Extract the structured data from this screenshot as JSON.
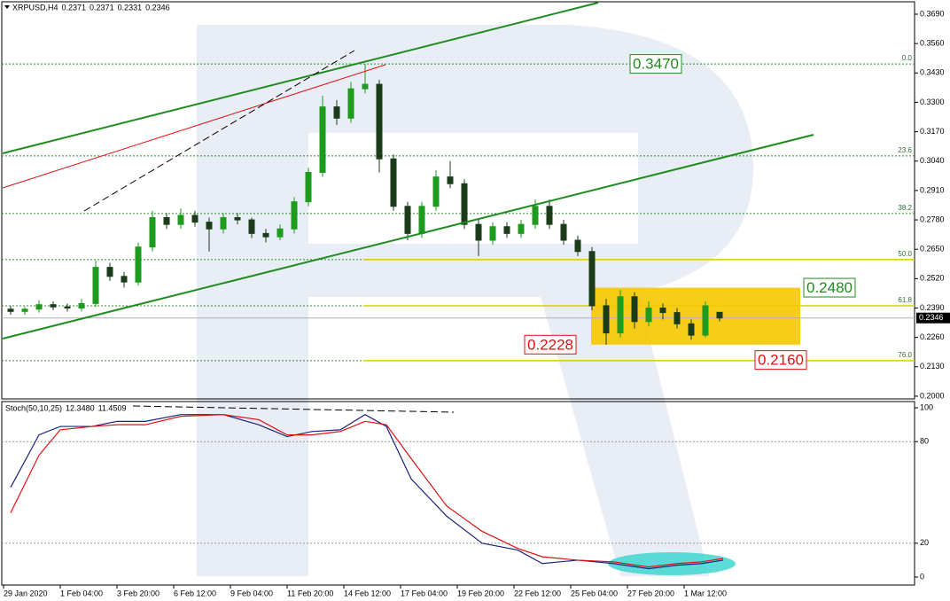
{
  "chart_data": [
    {
      "type": "candlestick",
      "title": "XRPUSD,H4",
      "last_ohlc": [
        0.2371,
        0.2371,
        0.2331,
        0.2346
      ],
      "up_color": "#1e9a1e",
      "down_color": "#1b3b1b",
      "x": [
        2,
        6,
        10,
        14,
        18,
        22,
        26,
        30,
        34,
        38,
        42,
        46,
        50,
        54,
        58,
        62,
        66,
        70,
        74,
        78,
        82,
        86,
        90,
        94,
        98,
        102,
        106,
        110,
        114,
        118,
        122,
        126,
        130,
        134,
        138,
        142,
        146,
        150,
        154,
        158,
        162,
        166,
        170,
        174,
        178,
        182,
        186,
        190,
        194,
        198,
        202
      ],
      "close": [
        0.2375,
        0.2385,
        0.2405,
        0.2395,
        0.239,
        0.241,
        0.257,
        0.253,
        0.2505,
        0.266,
        0.279,
        0.276,
        0.28,
        0.277,
        0.274,
        0.279,
        0.278,
        0.272,
        0.2705,
        0.274,
        0.286,
        0.299,
        0.328,
        0.323,
        0.336,
        0.338,
        0.305,
        0.284,
        0.272,
        0.284,
        0.297,
        0.294,
        0.276,
        0.269,
        0.275,
        0.272,
        0.276,
        0.284,
        0.276,
        0.269,
        0.264,
        0.24,
        0.228,
        0.244,
        0.233,
        0.239,
        0.237,
        0.232,
        0.227,
        0.24,
        0.2346
      ],
      "open": [
        0.2385,
        0.2375,
        0.2385,
        0.2405,
        0.2395,
        0.239,
        0.241,
        0.257,
        0.253,
        0.2505,
        0.266,
        0.279,
        0.276,
        0.28,
        0.277,
        0.274,
        0.279,
        0.278,
        0.272,
        0.2705,
        0.274,
        0.286,
        0.299,
        0.328,
        0.323,
        0.336,
        0.338,
        0.305,
        0.284,
        0.272,
        0.284,
        0.297,
        0.294,
        0.276,
        0.269,
        0.275,
        0.272,
        0.276,
        0.284,
        0.276,
        0.269,
        0.264,
        0.24,
        0.228,
        0.244,
        0.233,
        0.239,
        0.237,
        0.232,
        0.227,
        0.2371
      ],
      "high": [
        0.24,
        0.2395,
        0.2425,
        0.242,
        0.241,
        0.243,
        0.26,
        0.259,
        0.255,
        0.268,
        0.282,
        0.281,
        0.283,
        0.282,
        0.279,
        0.281,
        0.281,
        0.279,
        0.274,
        0.276,
        0.288,
        0.301,
        0.333,
        0.331,
        0.339,
        0.347,
        0.34,
        0.307,
        0.286,
        0.286,
        0.3,
        0.304,
        0.296,
        0.278,
        0.277,
        0.277,
        0.278,
        0.287,
        0.287,
        0.278,
        0.271,
        0.266,
        0.243,
        0.247,
        0.246,
        0.242,
        0.241,
        0.239,
        0.234,
        0.242,
        0.2371
      ],
      "low": [
        0.236,
        0.236,
        0.237,
        0.238,
        0.2375,
        0.2375,
        0.2395,
        0.251,
        0.248,
        0.249,
        0.264,
        0.274,
        0.274,
        0.275,
        0.264,
        0.272,
        0.276,
        0.27,
        0.268,
        0.269,
        0.272,
        0.284,
        0.297,
        0.32,
        0.321,
        0.334,
        0.299,
        0.282,
        0.269,
        0.27,
        0.282,
        0.292,
        0.274,
        0.262,
        0.267,
        0.27,
        0.27,
        0.274,
        0.274,
        0.267,
        0.262,
        0.238,
        0.2228,
        0.226,
        0.23,
        0.231,
        0.234,
        0.23,
        0.225,
        0.226,
        0.2331
      ],
      "xlim": [
        -0.5,
        257
      ],
      "ylim": [
        0.1988,
        0.3745
      ],
      "yticks": [
        {
          "value": 0.2,
          "label": "0.2000"
        },
        {
          "value": 0.213,
          "label": "0.2130"
        },
        {
          "value": 0.226,
          "label": "0.2260"
        },
        {
          "value": 0.239,
          "label": "0.2390"
        },
        {
          "value": 0.252,
          "label": "0.2520"
        },
        {
          "value": 0.265,
          "label": "0.2650"
        },
        {
          "value": 0.278,
          "label": "0.2780"
        },
        {
          "value": 0.291,
          "label": "0.2910"
        },
        {
          "value": 0.304,
          "label": "0.3040"
        },
        {
          "value": 0.317,
          "label": "0.3170"
        },
        {
          "value": 0.33,
          "label": "0.3300"
        },
        {
          "value": 0.343,
          "label": "0.3430"
        },
        {
          "value": 0.356,
          "label": "0.3560"
        },
        {
          "value": 0.369,
          "label": "0.3690"
        }
      ],
      "fib_levels": [
        {
          "label": "0.0",
          "value": 0.347
        },
        {
          "label": "23.6",
          "value": 0.3063
        },
        {
          "label": "38.2",
          "value": 0.2808
        },
        {
          "label": "50.0",
          "value": 0.2604
        },
        {
          "label": "61.8",
          "value": 0.24
        },
        {
          "label": "76.0",
          "value": 0.2157
        }
      ],
      "annotations": [
        {
          "label": "0.3470",
          "value": 0.347,
          "color": "#1e8c1e"
        },
        {
          "label": "0.2480",
          "value": 0.248,
          "color": "#1e8c1e"
        },
        {
          "label": "0.2228",
          "value": 0.2228,
          "color": "#e01010"
        },
        {
          "label": "0.2160",
          "value": 0.216,
          "color": "#e01010"
        }
      ],
      "zone_color": "#f5c800"
    },
    {
      "type": "line",
      "title": "Stoch(50,10,25)",
      "header_values": [
        {
          "value": 12.348,
          "label": "12.3480"
        },
        {
          "value": 11.4509,
          "label": "11.4509"
        }
      ],
      "x": [
        2,
        10,
        16,
        25,
        32,
        40,
        50,
        62,
        72,
        80,
        87,
        95,
        102,
        108,
        115,
        125,
        135,
        145,
        152,
        162,
        172,
        182,
        190,
        197,
        203
      ],
      "series": [
        {
          "color": "#1a237e",
          "values": [
            53,
            84,
            89,
            89,
            92,
            92,
            96,
            96,
            90,
            83,
            86,
            87,
            96,
            89,
            58,
            36,
            20,
            16,
            8,
            10,
            8,
            5,
            7,
            8,
            10
          ]
        },
        {
          "color": "#e01010",
          "values": [
            38,
            72,
            87,
            89,
            90,
            90,
            95,
            96,
            93,
            84,
            84,
            86,
            92,
            90,
            70,
            42,
            27,
            17,
            12,
            10,
            9,
            6,
            8,
            9,
            11
          ]
        }
      ],
      "xlim": [
        -0.5,
        257
      ],
      "ylim": [
        -4.7,
        103.7
      ],
      "yticks": [
        0,
        20,
        80,
        100
      ],
      "levels": [
        20,
        80
      ],
      "xticks": [
        {
          "value": 0,
          "label": "29 Jan 2020"
        },
        {
          "value": 16,
          "label": "1 Feb 04:00"
        },
        {
          "value": 32,
          "label": "3 Feb 20:00"
        },
        {
          "value": 48,
          "label": "6 Feb 12:00"
        },
        {
          "value": 64,
          "label": "9 Feb 04:00"
        },
        {
          "value": 80,
          "label": "11 Feb 20:00"
        },
        {
          "value": 96,
          "label": "14 Feb 12:00"
        },
        {
          "value": 112,
          "label": "17 Feb 04:00"
        },
        {
          "value": 128,
          "label": "19 Feb 20:00"
        },
        {
          "value": 144,
          "label": "22 Feb 12:00"
        },
        {
          "value": 160,
          "label": "25 Feb 04:00"
        },
        {
          "value": 176,
          "label": "27 Feb 20:00"
        },
        {
          "value": 192,
          "label": "1 Mar 12:00"
        }
      ]
    }
  ]
}
